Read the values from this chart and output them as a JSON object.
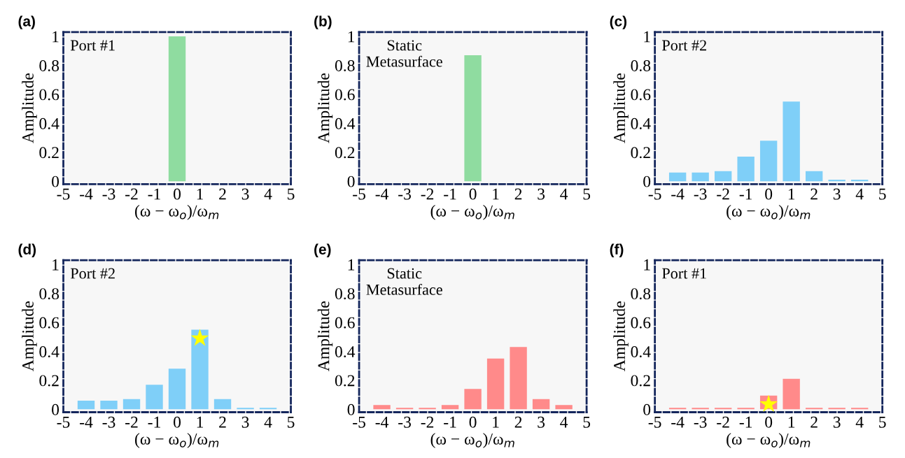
{
  "chart_data": [
    {
      "type": "bar",
      "title": "(a)",
      "xlabel": "(ω − ω$_{o}$)/ω$_{m}$",
      "ylabel": "Amplitude",
      "annotations": [
        "Port #1"
      ],
      "xlim": [
        -5,
        5
      ],
      "xticks": [
        -5,
        -4,
        -3,
        -2,
        -1,
        0,
        1,
        2,
        3,
        4,
        5
      ],
      "ylim": [
        -0.02,
        1.03
      ],
      "yticks": [
        0,
        0.2,
        0.4,
        0.6,
        0.8,
        1
      ],
      "series": [
        {
          "color": "#8fdca0",
          "x": [
            0
          ],
          "values": [
            1.0
          ]
        }
      ]
    },
    {
      "type": "bar",
      "title": "(b)",
      "xlabel": "(ω − ω$_{o}$)/ω$_{m}$",
      "ylabel": "Amplitude",
      "annotations": [
        "Static\nMetasurface"
      ],
      "xlim": [
        -5,
        5
      ],
      "xticks": [
        -5,
        -4,
        -3,
        -2,
        -1,
        0,
        1,
        2,
        3,
        4,
        5
      ],
      "ylim": [
        -0.02,
        1.03
      ],
      "yticks": [
        0,
        0.2,
        0.4,
        0.6,
        0.8,
        1
      ],
      "series": [
        {
          "color": "#8fdca0",
          "x": [
            0
          ],
          "values": [
            0.87
          ]
        }
      ]
    },
    {
      "type": "bar",
      "title": "(c)",
      "xlabel": "(ω − ω$_{o}$)/ω$_{m}$",
      "ylabel": "Amplitude",
      "annotations": [
        "Port #2"
      ],
      "xlim": [
        -5,
        5
      ],
      "xticks": [
        -5,
        -4,
        -3,
        -2,
        -1,
        0,
        1,
        2,
        3,
        4,
        5
      ],
      "ylim": [
        -0.02,
        1.03
      ],
      "yticks": [
        0,
        0.2,
        0.4,
        0.6,
        0.8,
        1
      ],
      "series": [
        {
          "color": "#7fcff8",
          "x": [
            -4,
            -3,
            -2,
            -1,
            0,
            1,
            2,
            3,
            4
          ],
          "values": [
            0.06,
            0.06,
            0.07,
            0.17,
            0.28,
            0.55,
            0.07,
            0.01,
            0.01
          ]
        }
      ]
    },
    {
      "type": "bar",
      "title": "(d)",
      "xlabel": "(ω − ω$_{o}$)/ω$_{m}$",
      "ylabel": "Amplitude",
      "annotations": [
        "Port #2"
      ],
      "xlim": [
        -5,
        5
      ],
      "xticks": [
        -5,
        -4,
        -3,
        -2,
        -1,
        0,
        1,
        2,
        3,
        4,
        5
      ],
      "ylim": [
        -0.02,
        1.03
      ],
      "yticks": [
        0,
        0.2,
        0.4,
        0.6,
        0.8,
        1
      ],
      "series": [
        {
          "color": "#7fcff8",
          "x": [
            -4,
            -3,
            -2,
            -1,
            0,
            1,
            2,
            3,
            4
          ],
          "values": [
            0.06,
            0.06,
            0.07,
            0.17,
            0.28,
            0.55,
            0.07,
            0.01,
            0.01
          ]
        },
        {
          "type": "scatter",
          "marker": "star",
          "color": "#ffff00",
          "x": [
            1
          ],
          "values": [
            0.49
          ]
        }
      ]
    },
    {
      "type": "bar",
      "title": "(e)",
      "xlabel": "(ω − ω$_{o}$)/ω$_{m}$",
      "ylabel": "Amplitude",
      "annotations": [
        "Static\nMetasurface"
      ],
      "xlim": [
        -5,
        5
      ],
      "xticks": [
        -5,
        -4,
        -3,
        -2,
        -1,
        0,
        1,
        2,
        3,
        4,
        5
      ],
      "ylim": [
        -0.02,
        1.03
      ],
      "yticks": [
        0,
        0.2,
        0.4,
        0.6,
        0.8,
        1
      ],
      "series": [
        {
          "color": "#ff8a8a",
          "x": [
            -4,
            -3,
            -2,
            -1,
            0,
            1,
            2,
            3,
            4
          ],
          "values": [
            0.03,
            0.01,
            0.01,
            0.03,
            0.14,
            0.35,
            0.43,
            0.07,
            0.03
          ]
        }
      ]
    },
    {
      "type": "bar",
      "title": "(f)",
      "xlabel": "(ω − ω$_{o}$)/ω$_{m}$",
      "ylabel": "Amplitude",
      "annotations": [
        "Port #1"
      ],
      "xlim": [
        -5,
        5
      ],
      "xticks": [
        -5,
        -4,
        -3,
        -2,
        -1,
        0,
        1,
        2,
        3,
        4,
        5
      ],
      "ylim": [
        -0.02,
        1.03
      ],
      "yticks": [
        0,
        0.2,
        0.4,
        0.6,
        0.8,
        1
      ],
      "series": [
        {
          "color": "#ff8a8a",
          "x": [
            -4,
            -3,
            -2,
            -1,
            0,
            1,
            2,
            3,
            4
          ],
          "values": [
            0.01,
            0.01,
            0.01,
            0.01,
            0.095,
            0.21,
            0.01,
            0.01,
            0.01
          ]
        },
        {
          "type": "scatter",
          "marker": "star",
          "color": "#ffff00",
          "x": [
            0
          ],
          "values": [
            0.035
          ]
        }
      ]
    }
  ]
}
